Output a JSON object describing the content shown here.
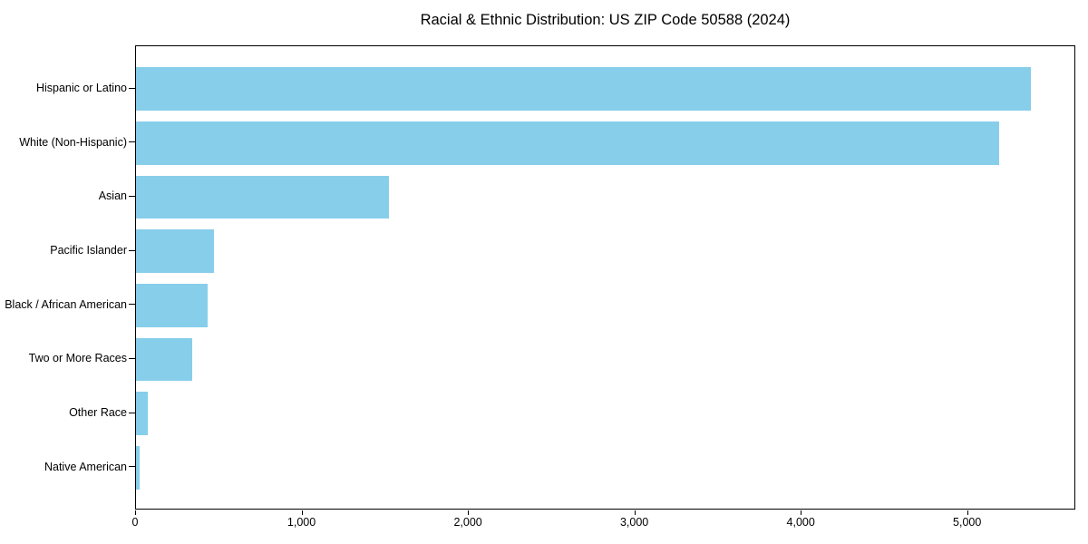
{
  "chart_data": {
    "type": "bar",
    "orientation": "horizontal",
    "title": "Racial & Ethnic Distribution: US ZIP Code 50588 (2024)",
    "categories": [
      "Hispanic or Latino",
      "White (Non-Hispanic)",
      "Asian",
      "Pacific Islander",
      "Black / African American",
      "Two or More Races",
      "Other Race",
      "Native American"
    ],
    "values": [
      5380,
      5185,
      1520,
      470,
      430,
      340,
      70,
      20
    ],
    "xlabel": "",
    "ylabel": "",
    "xlim": [
      0,
      5650
    ],
    "x_ticks": [
      0,
      1000,
      2000,
      3000,
      4000,
      5000
    ],
    "x_tick_labels": [
      "0",
      "1,000",
      "2,000",
      "3,000",
      "4,000",
      "5,000"
    ],
    "grid": false,
    "legend": false,
    "bar_color": "#87CEEB",
    "background_color": "#ffffff",
    "spine_color": "#000000",
    "text_color": "#000000"
  }
}
